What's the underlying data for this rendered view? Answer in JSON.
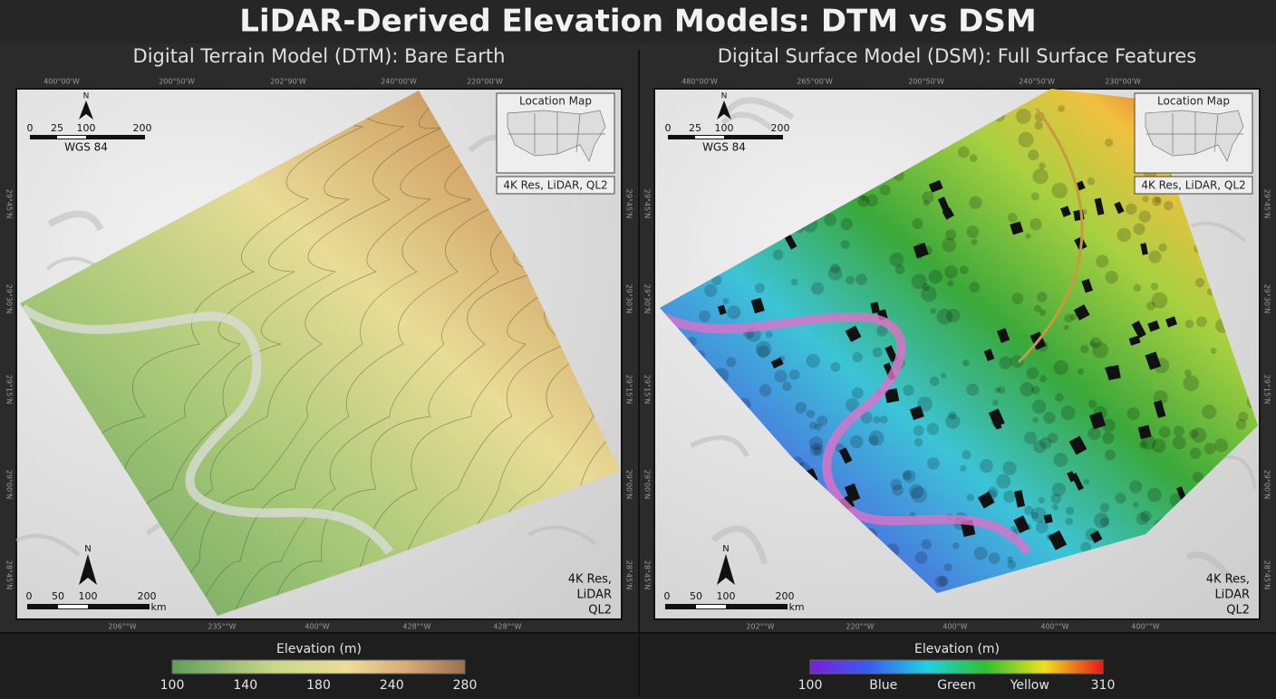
{
  "title": "LiDAR-Derived Elevation Models: DTM vs DSM",
  "panels": [
    {
      "subtitle": "Digital Terrain Model (DTM): Bare Earth",
      "top_coords": [
        "400°00'W",
        "200°50'W",
        "202°90'W",
        "240°00'W",
        "220°00'W"
      ],
      "bottom_coords": [
        "206°°W",
        "235°°W",
        "400°W",
        "428°°W",
        "428°°W"
      ],
      "left_coords": [
        "29°45'N",
        "29°30'N",
        "29°15'N",
        "29°00'N",
        "28°45'N"
      ],
      "right_coords": [
        "29°45'N",
        "29°30'N",
        "29°15'N",
        "29°00'N",
        "28°45'N"
      ],
      "scale_top": {
        "north": "N",
        "ticks": [
          "0",
          "25",
          "100",
          "200"
        ],
        "datum": "WGS 84"
      },
      "inset": {
        "title": "Location Map",
        "caption": "4K Res, LiDAR, QL2"
      },
      "scale_bottom": {
        "north": "N",
        "ticks": [
          "0",
          "50",
          "100",
          "200"
        ],
        "unit": "km"
      },
      "corner_note": [
        "4K Res,",
        "LiDAR",
        "QL2"
      ],
      "legend": {
        "title": "Elevation (m)",
        "labels": [
          "100",
          "140",
          "180",
          "240",
          "280"
        ]
      }
    },
    {
      "subtitle": "Digital Surface Model (DSM): Full Surface Features",
      "top_coords": [
        "480°00'W",
        "265°00'W",
        "200°50'W",
        "240°50'W",
        "230°00'W"
      ],
      "bottom_coords": [
        "202°°W",
        "220°°W",
        "400°W",
        "400°°W",
        "400°°W"
      ],
      "left_coords": [
        "29°45'N",
        "29°30'N",
        "29°15'N",
        "29°00'N",
        "28°45'N"
      ],
      "right_coords": [
        "29°45'N",
        "29°30'N",
        "29°15'N",
        "29°00'N",
        "28°45'N"
      ],
      "scale_top": {
        "north": "N",
        "ticks": [
          "0",
          "25",
          "100",
          "200"
        ],
        "datum": "WGS 84"
      },
      "inset": {
        "title": "Location Map",
        "caption": "4K Res, LiDAR, QL2"
      },
      "scale_bottom": {
        "north": "N",
        "ticks": [
          "0",
          "50",
          "100",
          "200"
        ],
        "unit": "km"
      },
      "corner_note": [
        "4K Res,",
        "LiDAR",
        "QL2"
      ],
      "legend": {
        "title": "Elevation (m)",
        "labels": [
          "100",
          "Blue",
          "Green",
          "Yellow",
          "310"
        ]
      }
    }
  ]
}
